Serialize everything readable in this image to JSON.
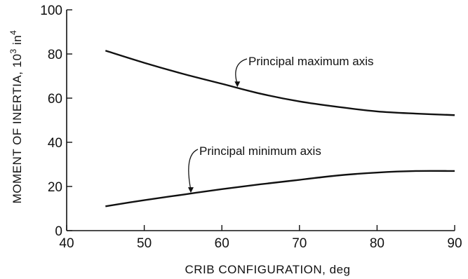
{
  "chart_data": {
    "type": "line",
    "xlabel": "CRIB CONFIGURATION, deg",
    "ylabel_main": "MOMENT OF INERTIA, 10",
    "ylabel_exp1": "3",
    "ylabel_unit": " in",
    "ylabel_exp2": "4",
    "xlim": [
      40,
      90
    ],
    "ylim": [
      0,
      100
    ],
    "x_ticks": [
      40,
      50,
      60,
      70,
      80,
      90
    ],
    "x_tick_labels": [
      "40",
      "50",
      "60",
      "70",
      "80",
      "90"
    ],
    "y_ticks": [
      0,
      20,
      40,
      60,
      80,
      100
    ],
    "y_tick_labels": [
      "0",
      "20",
      "40",
      "60",
      "80",
      "100"
    ],
    "grid": false,
    "series": [
      {
        "name": "Principal maximum axis",
        "x": [
          45,
          50,
          55,
          60,
          65,
          70,
          75,
          80,
          85,
          90
        ],
        "y": [
          81.5,
          76,
          71,
          66.5,
          62,
          58.5,
          56,
          54,
          53,
          52.3
        ]
      },
      {
        "name": "Principal minimum axis",
        "x": [
          45,
          50,
          55,
          60,
          65,
          70,
          75,
          80,
          85,
          90
        ],
        "y": [
          11,
          13.8,
          16.3,
          18.8,
          21,
          23,
          25,
          26.3,
          27,
          27
        ]
      }
    ],
    "annotations": [
      {
        "text": "Principal maximum axis",
        "series": 0,
        "target_x": 62
      },
      {
        "text": "Principal minimum axis",
        "series": 1,
        "target_x": 56
      }
    ]
  }
}
